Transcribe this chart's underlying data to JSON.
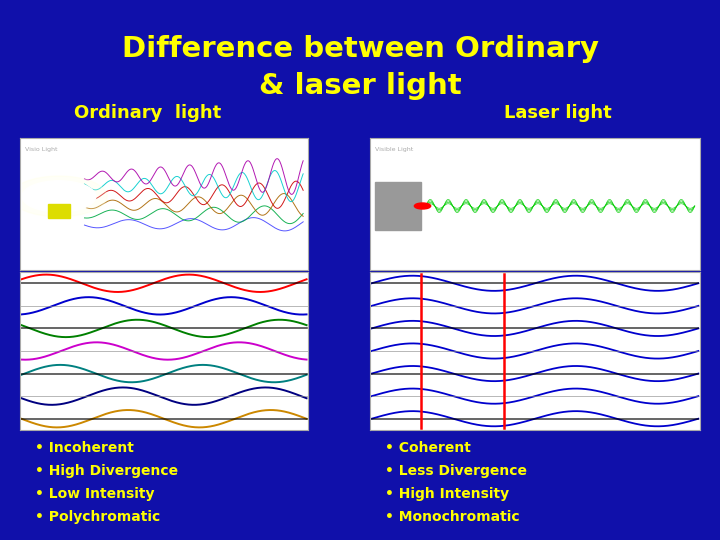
{
  "title_line1": "Difference between Ordinary",
  "title_line2": "& laser light",
  "title_color": "#FFFF00",
  "background_color": "#1010AA",
  "ordinary_label": "Ordinary  light",
  "laser_label": "Laser light",
  "label_color": "#FFFF00",
  "ordinary_bullets": [
    "• Incoherent",
    "• High Divergence",
    "• Low Intensity",
    "• Polychromatic"
  ],
  "laser_bullets": [
    "• Coherent",
    "• Less Divergence",
    "• High Intensity",
    "• Monochromatic"
  ],
  "bullet_color": "#FFFF00",
  "ordinary_wave_colors": [
    "#FF0000",
    "#0000CD",
    "#008000",
    "#CC00CC",
    "#008080",
    "#000080",
    "#CC8800"
  ],
  "laser_wave_color": "#0000CD",
  "laser_red_line_color": "#FF0000"
}
